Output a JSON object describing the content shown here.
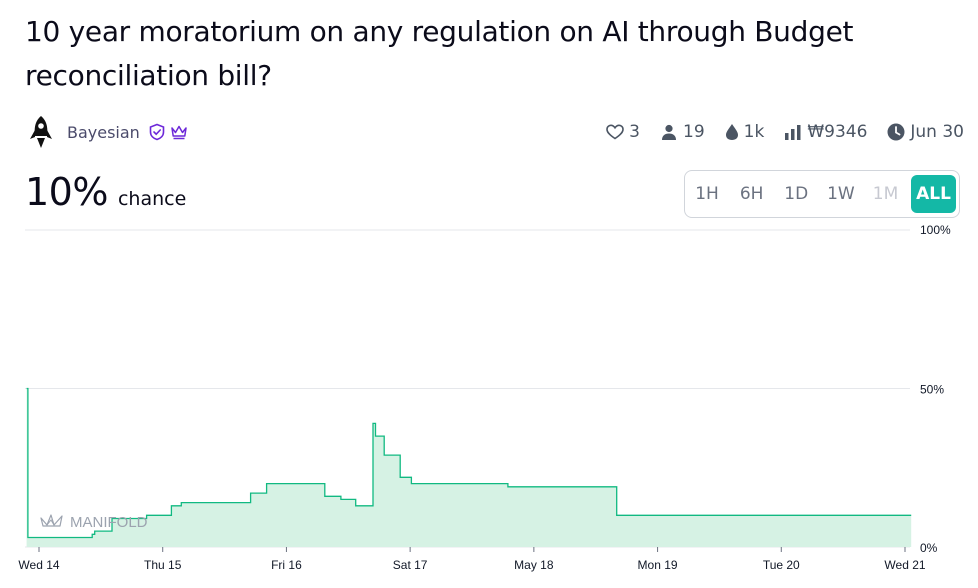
{
  "question": {
    "title": "10 year moratorium on any regulation on AI through Budget reconciliation bill?"
  },
  "author": {
    "name": "Bayesian",
    "avatar_icon": "rocket-icon",
    "badges": [
      "shield-check-icon",
      "crown-icon"
    ]
  },
  "stats": {
    "likes": "3",
    "traders": "19",
    "liquidity": "1k",
    "volume": "₩9346",
    "close_date": "Jun 30"
  },
  "probability": {
    "value": "10%",
    "label": "chance"
  },
  "time_ranges": [
    {
      "label": "1H",
      "state": "normal"
    },
    {
      "label": "6H",
      "state": "normal"
    },
    {
      "label": "1D",
      "state": "normal"
    },
    {
      "label": "1W",
      "state": "normal"
    },
    {
      "label": "1M",
      "state": "disabled"
    },
    {
      "label": "ALL",
      "state": "active"
    }
  ],
  "watermark": "MANIFOLD",
  "colors": {
    "accent": "#14b8a6",
    "line": "#11b981",
    "fill": "#d6f2e4",
    "grid": "#e5e7eb"
  },
  "chart_data": {
    "type": "area",
    "step": true,
    "y_ticks": [
      "0%",
      "50%",
      "100%"
    ],
    "ylim": [
      0,
      100
    ],
    "x_ticks": [
      {
        "t": 0,
        "label": "Wed 14"
      },
      {
        "t": 1,
        "label": "Thu 15"
      },
      {
        "t": 2,
        "label": "Fri 16"
      },
      {
        "t": 3,
        "label": "Sat 17"
      },
      {
        "t": 4,
        "label": "May 18"
      },
      {
        "t": 5,
        "label": "Mon 19"
      },
      {
        "t": 6,
        "label": "Tue 20"
      },
      {
        "t": 7,
        "label": "Wed 21"
      }
    ],
    "xlim": [
      -0.1,
      7.05
    ],
    "points": [
      [
        -0.1,
        50
      ],
      [
        -0.09,
        3
      ],
      [
        0.43,
        4
      ],
      [
        0.45,
        5
      ],
      [
        0.59,
        9
      ],
      [
        0.87,
        10
      ],
      [
        1.07,
        13
      ],
      [
        1.15,
        14
      ],
      [
        1.71,
        17
      ],
      [
        1.84,
        20
      ],
      [
        2.31,
        16
      ],
      [
        2.44,
        15
      ],
      [
        2.56,
        13
      ],
      [
        2.7,
        39
      ],
      [
        2.72,
        35
      ],
      [
        2.79,
        29
      ],
      [
        2.92,
        22
      ],
      [
        3.01,
        20
      ],
      [
        3.79,
        19
      ],
      [
        4.66,
        19
      ],
      [
        4.67,
        10
      ],
      [
        7.05,
        10
      ]
    ]
  }
}
